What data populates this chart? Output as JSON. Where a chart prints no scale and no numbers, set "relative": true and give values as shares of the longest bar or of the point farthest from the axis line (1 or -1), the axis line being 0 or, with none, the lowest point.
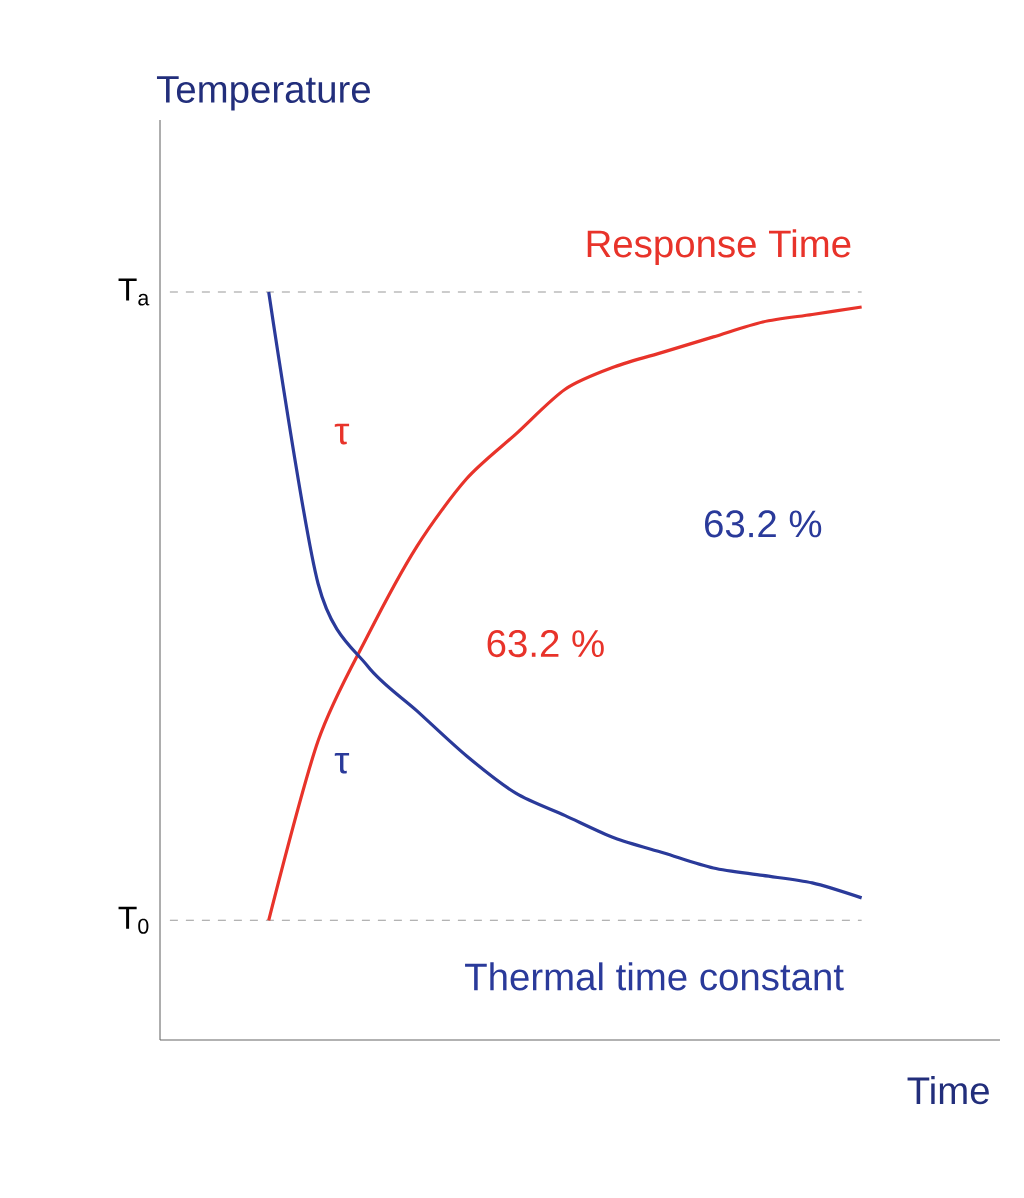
{
  "chart_data": {
    "type": "line",
    "xlabel": "Time",
    "ylabel": "Temperature",
    "relative": true,
    "categories": [
      null,
      null,
      null,
      null,
      null,
      null,
      null,
      null,
      null,
      null,
      null,
      null,
      null,
      null,
      null,
      null,
      null
    ],
    "series": [
      {
        "name": "Response Time",
        "color": "#e8332a",
        "values": [
          null,
          null,
          0.16,
          0.4,
          0.54,
          0.66,
          0.75,
          0.81,
          0.87,
          0.9,
          0.92,
          0.94,
          0.96,
          0.97,
          0.98,
          null,
          null
        ]
      },
      {
        "name": "Thermal time constant",
        "color": "#2a3a9a",
        "values": [
          null,
          null,
          1.0,
          0.61,
          0.5,
          0.44,
          0.38,
          0.33,
          0.3,
          0.27,
          0.25,
          0.23,
          0.22,
          0.21,
          0.19,
          null,
          null
        ]
      }
    ],
    "ref_lines": [
      {
        "axis": "y",
        "value": 1,
        "label": "T$_{a}$",
        "color": "#9a9a9a",
        "line_style": "dashed"
      },
      {
        "axis": "y",
        "value": 0.16,
        "label": "T$_{0}$",
        "color": "#9a9a9a",
        "line_style": "dashed"
      }
    ],
    "annotations": [
      "τ",
      "τ",
      "63.2 %",
      "63.2 %"
    ],
    "marker": "none",
    "line_style": "solid",
    "legend": false
  }
}
